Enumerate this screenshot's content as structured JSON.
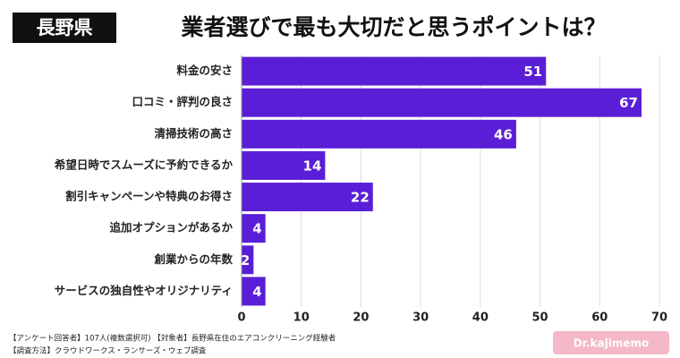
{
  "chart_data": {
    "type": "bar",
    "orientation": "horizontal",
    "badge": "長野県",
    "title": "業者選びで最も大切だと思うポイントは？",
    "categories": [
      "料金の安さ",
      "口コミ・評判の良さ",
      "清掃技術の高さ",
      "希望日時でスムーズに予約できるか",
      "割引キャンペーンや特典のお得さ",
      "追加オプションがあるか",
      "創業からの年数",
      "サービスの独自性やオリジナリティ"
    ],
    "values": [
      51,
      67,
      46,
      14,
      22,
      4,
      2,
      4
    ],
    "color": "#5a1ed6",
    "xlim": [
      0,
      70
    ],
    "xticks": [
      0,
      10,
      20,
      30,
      40,
      50,
      60,
      70
    ],
    "grid": true,
    "notes": [
      "【アンケート回答者】107人(複数選択可) 【対象者】長野県在住のエアコンクリーニング経験者",
      "【調査方法】クラウドワークス・ランサーズ・ウェブ調査"
    ],
    "logo": "Dr.kajimemo"
  }
}
